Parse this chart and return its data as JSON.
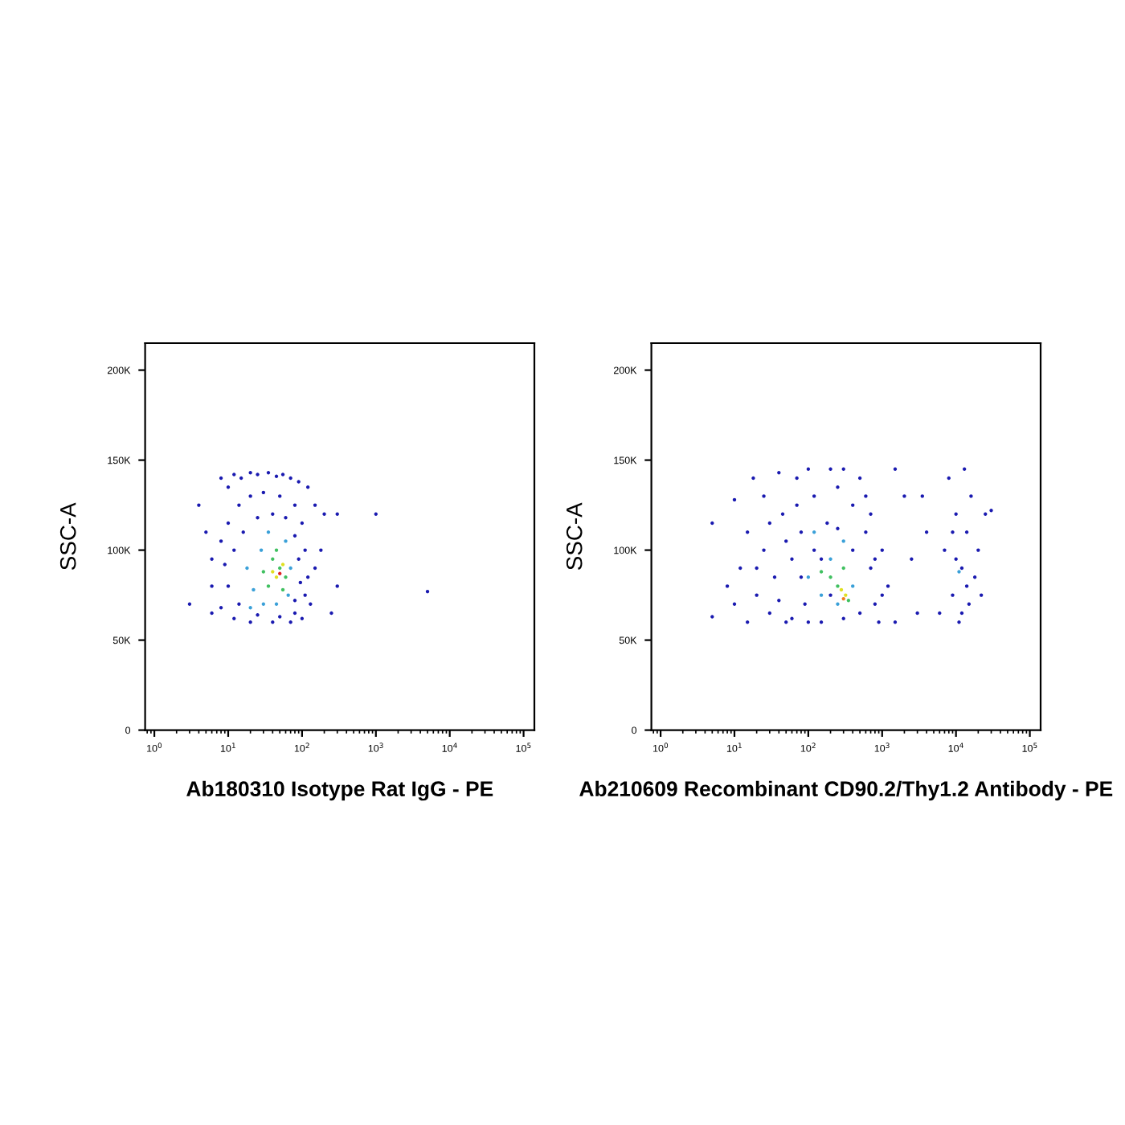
{
  "chart_data": [
    {
      "type": "scatter",
      "xlabel": "Ab180310 Isotype Rat IgG - PE",
      "ylabel": "SSC-A",
      "log": "x",
      "marker": "circle",
      "grid": false,
      "xlim": [
        0.75,
        140000
      ],
      "ylim": [
        0,
        215000
      ],
      "xticks": [
        {
          "value": 1,
          "label": "10$^{0}$"
        },
        {
          "value": 10,
          "label": "10$^{1}$"
        },
        {
          "value": 100,
          "label": "10$^{2}$"
        },
        {
          "value": 1000,
          "label": "10$^{3}$"
        },
        {
          "value": 10000,
          "label": "10$^{4}$"
        },
        {
          "value": 100000,
          "label": "10$^{5}$"
        }
      ],
      "yticks": [
        0,
        {
          "value": 50000,
          "label": "50K"
        },
        {
          "value": 100000,
          "label": "100K"
        },
        {
          "value": 150000,
          "label": "150K"
        },
        {
          "value": 200000,
          "label": "200K"
        }
      ],
      "series": [
        {
          "x": [
            4,
            3,
            5,
            6,
            8,
            10,
            12,
            15,
            20,
            25,
            35,
            45,
            55,
            70,
            90,
            120,
            150,
            200,
            300,
            1000,
            5000,
            300,
            250,
            180,
            150,
            130,
            100,
            70,
            40,
            20,
            12,
            8,
            6,
            6,
            8,
            10,
            14,
            20,
            30,
            50,
            80,
            100,
            110,
            120,
            110,
            80,
            50,
            25,
            14,
            10,
            9,
            12,
            16,
            25,
            40,
            60,
            80,
            90,
            95,
            80
          ],
          "values": [
            125000,
            70000,
            110000,
            65000,
            140000,
            135000,
            142000,
            140000,
            143000,
            142000,
            143000,
            141000,
            142000,
            140000,
            138000,
            135000,
            125000,
            120000,
            120000,
            120000,
            77000,
            80000,
            65000,
            100000,
            90000,
            70000,
            62000,
            60000,
            60000,
            60000,
            62000,
            68000,
            80000,
            95000,
            105000,
            115000,
            125000,
            130000,
            132000,
            130000,
            125000,
            115000,
            100000,
            85000,
            75000,
            65000,
            63000,
            64000,
            70000,
            80000,
            92000,
            100000,
            110000,
            118000,
            120000,
            118000,
            108000,
            95000,
            82000,
            72000
          ],
          "color": "#1a1ab0"
        },
        {
          "x": [
            18,
            22,
            30,
            28,
            35,
            60,
            70,
            65,
            20,
            45
          ],
          "values": [
            90000,
            78000,
            70000,
            100000,
            110000,
            105000,
            90000,
            75000,
            68000,
            70000
          ],
          "color": "#3aa0d8"
        },
        {
          "x": [
            30,
            40,
            50,
            60,
            35,
            55,
            45
          ],
          "values": [
            88000,
            95000,
            90000,
            85000,
            80000,
            78000,
            100000
          ],
          "color": "#40c060"
        },
        {
          "x": [
            45,
            55,
            40
          ],
          "values": [
            85000,
            92000,
            88000
          ],
          "color": "#e0e020"
        },
        {
          "x": [
            50
          ],
          "values": [
            87000
          ],
          "color": "#e02020"
        }
      ]
    },
    {
      "type": "scatter",
      "xlabel": "Ab210609 Recombinant CD90.2/Thy1.2 Antibody - PE",
      "ylabel": "SSC-A",
      "log": "x",
      "marker": "circle",
      "grid": false,
      "xlim": [
        0.75,
        140000
      ],
      "ylim": [
        0,
        215000
      ],
      "xticks": [
        {
          "value": 1,
          "label": "10$^{0}$"
        },
        {
          "value": 10,
          "label": "10$^{1}$"
        },
        {
          "value": 100,
          "label": "10$^{2}$"
        },
        {
          "value": 1000,
          "label": "10$^{3}$"
        },
        {
          "value": 10000,
          "label": "10$^{4}$"
        },
        {
          "value": 100000,
          "label": "10$^{5}$"
        }
      ],
      "yticks": [
        0,
        {
          "value": 50000,
          "label": "50K"
        },
        {
          "value": 100000,
          "label": "100K"
        },
        {
          "value": 150000,
          "label": "150K"
        },
        {
          "value": 200000,
          "label": "200K"
        }
      ],
      "series": [
        {
          "x": [
            5,
            5,
            8,
            10,
            10,
            12,
            15,
            15,
            18,
            20,
            25,
            25,
            30,
            35,
            40,
            45,
            50,
            60,
            70,
            80,
            90,
            100,
            120,
            150,
            180,
            200,
            250,
            300,
            400,
            500,
            600,
            700,
            800,
            900,
            1000,
            1200,
            1500,
            2000,
            2500,
            3000,
            3500,
            4000,
            1500,
            30,
            40,
            60,
            80,
            100,
            150,
            200,
            300,
            400,
            500,
            600,
            700,
            1000,
            20,
            50,
            70,
            120,
            250,
            800,
            6000,
            7000,
            8000,
            9000,
            10000,
            11000,
            12000,
            13000,
            14000,
            15000,
            16000,
            18000,
            20000,
            22000,
            25000,
            10000,
            12000,
            14000,
            9000,
            30000
          ],
          "values": [
            63000,
            115000,
            80000,
            70000,
            128000,
            90000,
            60000,
            110000,
            140000,
            75000,
            100000,
            130000,
            65000,
            85000,
            143000,
            120000,
            60000,
            95000,
            140000,
            110000,
            70000,
            145000,
            130000,
            60000,
            115000,
            145000,
            135000,
            145000,
            125000,
            140000,
            110000,
            90000,
            70000,
            60000,
            100000,
            80000,
            145000,
            130000,
            95000,
            65000,
            130000,
            110000,
            60000,
            115000,
            72000,
            62000,
            85000,
            60000,
            95000,
            75000,
            62000,
            100000,
            65000,
            130000,
            120000,
            75000,
            90000,
            105000,
            125000,
            100000,
            112000,
            95000,
            65000,
            100000,
            140000,
            75000,
            120000,
            60000,
            90000,
            145000,
            110000,
            70000,
            130000,
            85000,
            100000,
            75000,
            120000,
            95000,
            65000,
            80000,
            110000,
            122000
          ],
          "color": "#1a1ab0"
        },
        {
          "x": [
            100,
            150,
            200,
            300,
            400,
            250,
            120,
            11000
          ],
          "values": [
            85000,
            75000,
            95000,
            105000,
            80000,
            70000,
            110000,
            88000
          ],
          "color": "#3aa0d8"
        },
        {
          "x": [
            200,
            300,
            250,
            350,
            150
          ],
          "values": [
            85000,
            90000,
            80000,
            72000,
            88000
          ],
          "color": "#40c060"
        },
        {
          "x": [
            280,
            320
          ],
          "values": [
            78000,
            75000
          ],
          "color": "#e0e020"
        },
        {
          "x": [
            300
          ],
          "values": [
            73000
          ],
          "color": "#f08020"
        }
      ]
    }
  ]
}
